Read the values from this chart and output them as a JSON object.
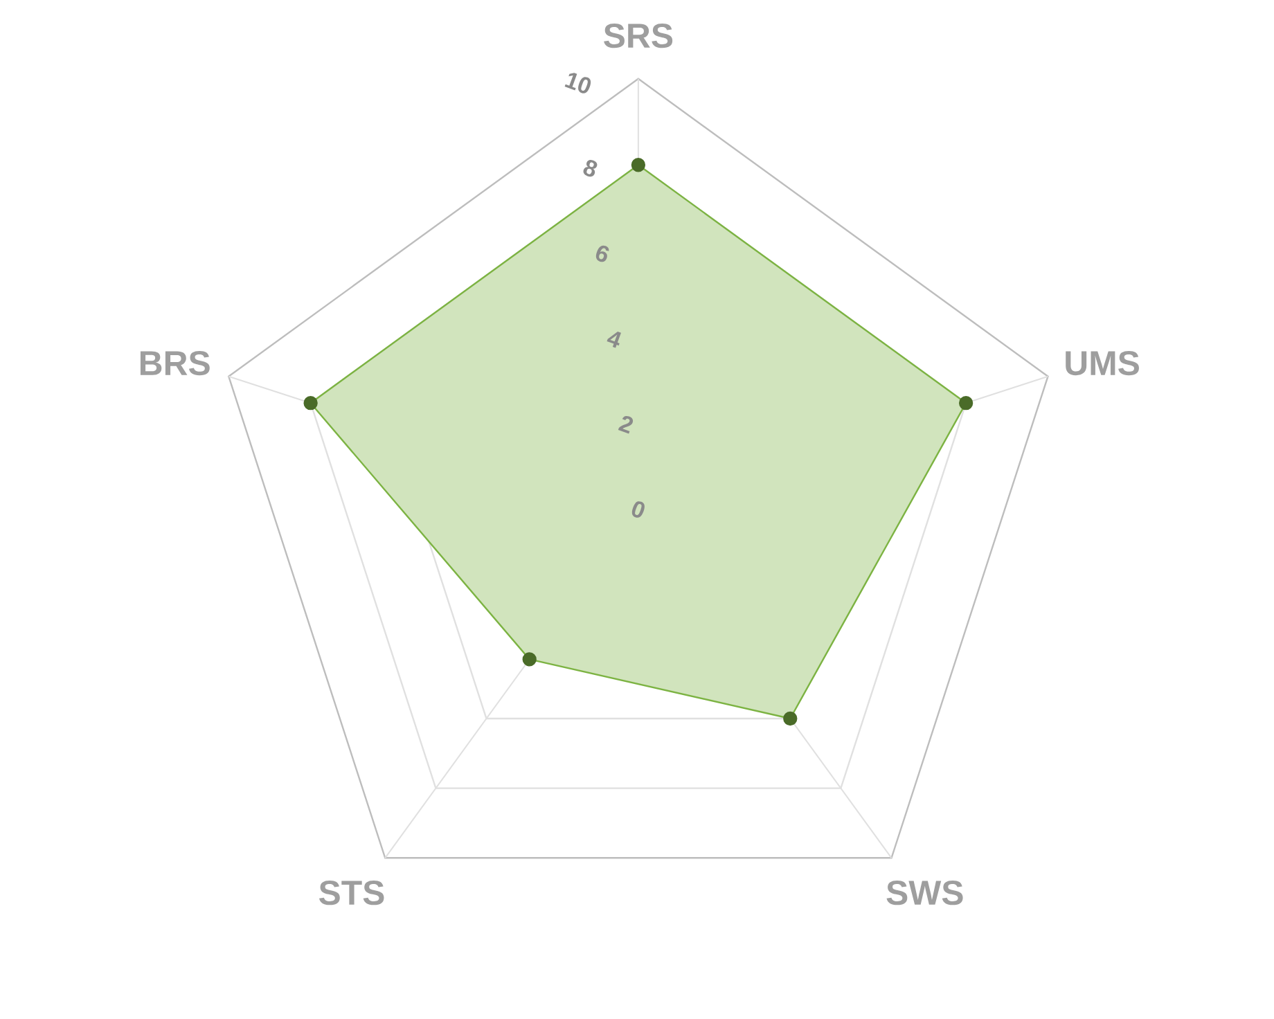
{
  "chart_data": {
    "type": "radar",
    "categories": [
      "SRS",
      "UMS",
      "SWS",
      "STS",
      "BRS"
    ],
    "series": [
      {
        "color": "#7cb342",
        "values": [
          8,
          8,
          6,
          4.3,
          8
        ]
      }
    ],
    "ylim": [
      0,
      10
    ],
    "yticks": [
      0,
      2,
      4,
      6,
      8,
      10
    ],
    "marker": "circle",
    "legend": false
  }
}
